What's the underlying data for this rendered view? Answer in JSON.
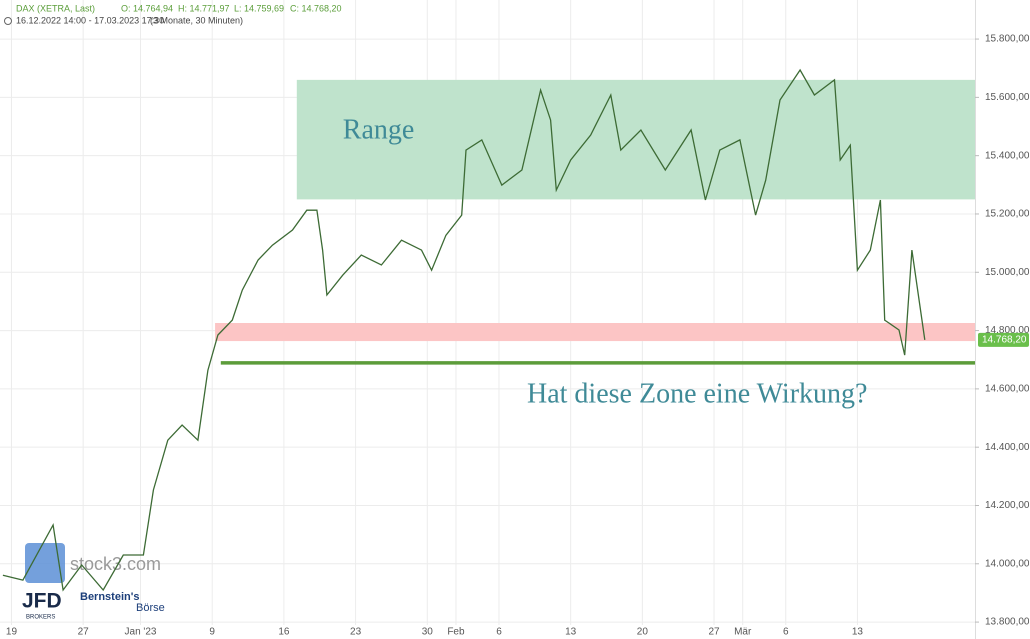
{
  "chart_data": {
    "type": "line",
    "header": {
      "symbol": "DAX (XETRA, Last)",
      "open": "O: 14.764,94",
      "high": "H: 14.771,97",
      "low": "L: 14.759,69",
      "close": "C: 14.768,20",
      "range": "16.12.2022 14:00 - 17.03.2023 17:30",
      "period": "(3 Monate, 30 Minuten)"
    },
    "series": [
      {
        "name": "DAX",
        "color": "#3d6b35",
        "x": [
          -0.6,
          0.8,
          2.9,
          3.6,
          4.9,
          6.4,
          7.8,
          9.2,
          9.9,
          10.9,
          11.9,
          13.0,
          13.7,
          14.4,
          15.4,
          16.1,
          17.2,
          18.2,
          19.6,
          20.6,
          21.3,
          21.7,
          22.0,
          23.1,
          24.4,
          25.8,
          27.2,
          28.6,
          29.3,
          30.3,
          31.4,
          31.7,
          32.8,
          34.2,
          35.6,
          36.9,
          37.6,
          38.0,
          39.0,
          40.4,
          41.8,
          42.5,
          43.9,
          45.6,
          47.4,
          48.4,
          49.4,
          50.8,
          51.9,
          52.6,
          53.6,
          55.0,
          56.0,
          57.4,
          57.8,
          58.5,
          59.0,
          59.9,
          60.6,
          60.9,
          61.9,
          62.3,
          62.8,
          63.7
        ],
        "values": [
          13961,
          13944,
          14133,
          13910,
          13996,
          13910,
          14030,
          14030,
          14253,
          14424,
          14476,
          14424,
          14664,
          14785,
          14836,
          14939,
          15042,
          15093,
          15145,
          15213,
          15213,
          15076,
          14922,
          14990,
          15059,
          15025,
          15110,
          15076,
          15007,
          15127,
          15196,
          15419,
          15454,
          15299,
          15351,
          15625,
          15522,
          15282,
          15385,
          15471,
          15608,
          15419,
          15488,
          15351,
          15488,
          15248,
          15419,
          15454,
          15196,
          15316,
          15591,
          15694,
          15608,
          15660,
          15385,
          15436,
          15007,
          15076,
          15248,
          14836,
          14802,
          14716,
          15076,
          14768
        ]
      }
    ],
    "zones": [
      {
        "label": "Range",
        "ylim": [
          15250,
          15660
        ],
        "x0": 19.9,
        "color": "#bfe3cc"
      },
      {
        "ylim": [
          14764,
          14826
        ],
        "x0": 14.2,
        "color": "#fcc5c5"
      }
    ],
    "levels": [
      {
        "value": 14689,
        "x0": 14.6,
        "color": "#5c9c3a"
      }
    ],
    "annotation": "Hat diese Zone eine Wirkung?",
    "last_price": {
      "value": 14768.2,
      "label": "14.768,20"
    },
    "xlim": [
      -0.8,
      67.2
    ],
    "ylim": [
      13742,
      15934
    ],
    "xticks": [
      {
        "value": 0,
        "label": "19"
      },
      {
        "value": 5,
        "label": "27"
      },
      {
        "value": 9,
        "label": "Jan '23"
      },
      {
        "value": 14,
        "label": "9"
      },
      {
        "value": 19,
        "label": "16"
      },
      {
        "value": 24,
        "label": "23"
      },
      {
        "value": 29,
        "label": "30"
      },
      {
        "value": 31,
        "label": "Feb"
      },
      {
        "value": 34,
        "label": "6"
      },
      {
        "value": 39,
        "label": "13"
      },
      {
        "value": 44,
        "label": "20"
      },
      {
        "value": 49,
        "label": "27"
      },
      {
        "value": 51,
        "label": "Mär"
      },
      {
        "value": 54,
        "label": "6"
      },
      {
        "value": 59,
        "label": "13"
      }
    ],
    "yticks": [
      {
        "value": 13800,
        "label": "13.800,00"
      },
      {
        "value": 14000,
        "label": "14.000,00"
      },
      {
        "value": 14200,
        "label": "14.200,00"
      },
      {
        "value": 14400,
        "label": "14.400,00"
      },
      {
        "value": 14600,
        "label": "14.600,00"
      },
      {
        "value": 14800,
        "label": "14.800,00"
      },
      {
        "value": 15000,
        "label": "15.000,00"
      },
      {
        "value": 15200,
        "label": "15.200,00"
      },
      {
        "value": 15400,
        "label": "15.400,00"
      },
      {
        "value": 15600,
        "label": "15.600,00"
      },
      {
        "value": 15800,
        "label": "15.800,00"
      }
    ],
    "grid": true,
    "logos": {
      "stock3": "stock3.com",
      "jfd": "JFD",
      "jfd_sub": "BROKERS",
      "bernstein": "Bernstein's",
      "boerse": "Börse"
    }
  }
}
